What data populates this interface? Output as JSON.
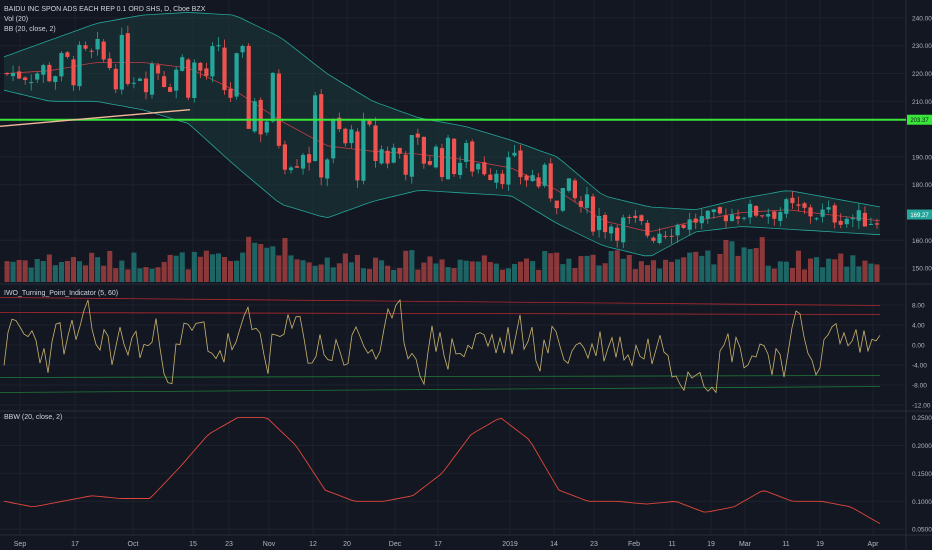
{
  "legend": {
    "title": "BAIDU INC SPON ADS EACH REP 0.1 ORD SHS, D, Cboe BZX",
    "vol": "Vol (20)",
    "bb": "BB (20, close, 2)",
    "iwo": "IWO_Turning_Point_Indicator (5, 60)",
    "bbw": "BBW (20, close, 2)"
  },
  "colors": {
    "background": "#131722",
    "up": "#26a69a",
    "down": "#ef5350",
    "band_fill": "#1a3a3d",
    "band_line": "#26a69a",
    "mid_line": "#c43b44",
    "level_line": "#39e63a",
    "trend_line": "#f2b89a",
    "osc_line": "#c9b36d",
    "bbw_line": "#e0473c",
    "price_badge": "#26a69a",
    "level_badge": "#39e63a"
  },
  "price_axis": {
    "ticks": [
      "240.00",
      "230.00",
      "220.00",
      "210.00",
      "190.00",
      "180.00",
      "160.00",
      "150.00"
    ],
    "level_badge": "203.37",
    "current_badge": "169.27"
  },
  "osc_axis": {
    "ticks": [
      "8.00",
      "4.00",
      "0.00",
      "-4.00",
      "-8.00",
      "-12.00"
    ]
  },
  "bbw_axis": {
    "ticks": [
      "0.2500",
      "0.2000",
      "0.1500",
      "0.1000",
      "0.0500"
    ]
  },
  "time_axis": {
    "labels": [
      "Sep",
      "17",
      "Oct",
      "15",
      "23",
      "Nov",
      "12",
      "20",
      "Dec",
      "17",
      "2019",
      "14",
      "23",
      "Feb",
      "11",
      "19",
      "Mar",
      "11",
      "19",
      "Apr"
    ]
  },
  "chart_data": [
    {
      "type": "candlestick",
      "title": "BAIDU INC SPON ADS EACH REP 0.1 ORD SHS, D, Cboe BZX",
      "x_start": "2018-08-31",
      "x_end": "2019-04-01",
      "ylim": [
        145,
        245
      ],
      "key_level": 203.37,
      "last_close": 169.27,
      "series": [
        {
          "name": "BB (20, close, 2)",
          "upper": [
            226,
            232,
            238,
            241,
            242,
            241,
            233,
            220,
            210,
            204,
            201,
            196,
            190,
            176,
            172,
            171,
            175,
            178,
            175,
            172
          ],
          "basis": [
            220,
            221,
            224,
            224,
            222,
            214,
            203,
            194,
            192,
            191,
            189,
            186,
            178,
            167,
            163,
            167,
            170,
            171,
            169,
            167
          ],
          "lower": [
            214,
            210,
            210,
            207,
            202,
            187,
            173,
            168,
            174,
            178,
            177,
            176,
            166,
            158,
            154,
            163,
            165,
            164,
            163,
            162
          ]
        }
      ]
    },
    {
      "type": "line",
      "title": "IWO_Turning_Point_Indicator (5, 60)",
      "ylim": [
        -13,
        11
      ],
      "upper_band": 6.5,
      "lower_band": -6.5
    },
    {
      "type": "line",
      "title": "BBW (20, close, 2)",
      "ylim": [
        0.045,
        0.26
      ],
      "values": [
        0.1,
        0.09,
        0.1,
        0.11,
        0.105,
        0.105,
        0.16,
        0.22,
        0.25,
        0.25,
        0.2,
        0.12,
        0.1,
        0.1,
        0.11,
        0.15,
        0.22,
        0.25,
        0.21,
        0.12,
        0.1,
        0.1,
        0.095,
        0.1,
        0.08,
        0.09,
        0.12,
        0.1,
        0.1,
        0.09,
        0.06
      ]
    }
  ]
}
